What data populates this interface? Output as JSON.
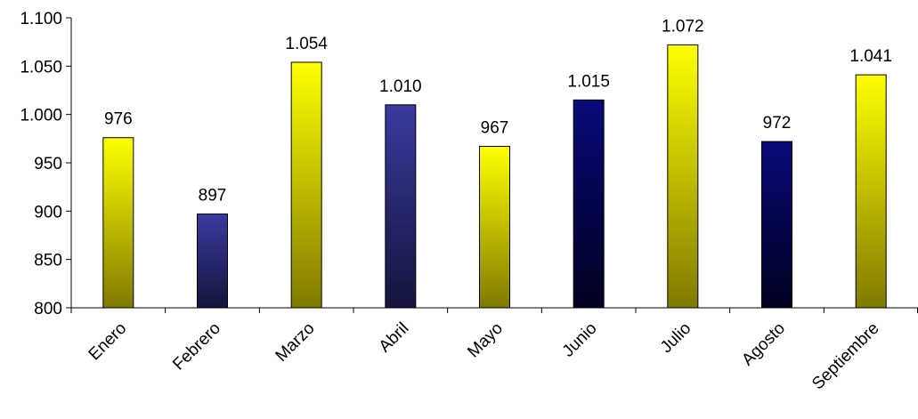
{
  "chart_data": {
    "type": "bar",
    "categories": [
      "Enero",
      "Febrero",
      "Marzo",
      "Abril",
      "Mayo",
      "Junio",
      "Julio",
      "Agosto",
      "Septiembre"
    ],
    "values": [
      976,
      897,
      1054,
      1010,
      967,
      1015,
      1072,
      972,
      1041
    ],
    "value_labels": [
      "976",
      "897",
      "1.054",
      "1.010",
      "967",
      "1.015",
      "1.072",
      "972",
      "1.041"
    ],
    "bar_styles": [
      "yellow",
      "blue",
      "yellow",
      "blue",
      "yellow",
      "navy",
      "yellow",
      "navy",
      "yellow"
    ],
    "ylim": [
      800,
      1100
    ],
    "yticks": [
      800,
      850,
      900,
      950,
      1000,
      1050,
      1100
    ],
    "ytick_labels": [
      "800",
      "850",
      "900",
      "950",
      "1.000",
      "1.050",
      "1.100"
    ],
    "grid": false,
    "legend": "none",
    "title": "",
    "xlabel": "",
    "ylabel": "",
    "colors": {
      "yellow_top": "#ffff00",
      "yellow_bottom": "#807a00",
      "blue_top": "#3a3aa0",
      "blue_bottom": "#14143c",
      "navy_top": "#0a0a7a",
      "navy_bottom": "#000020",
      "axis": "#000000"
    }
  }
}
